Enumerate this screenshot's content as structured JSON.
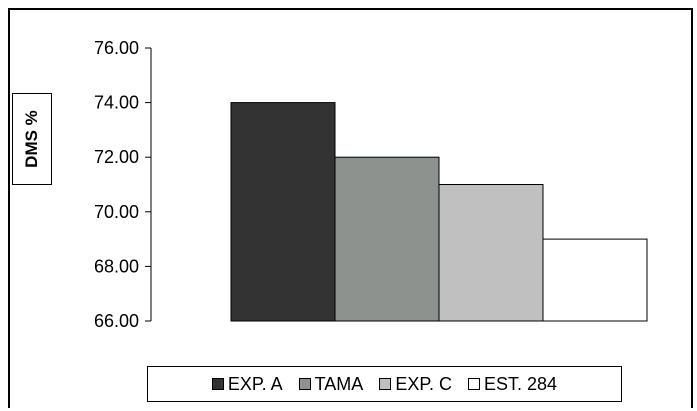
{
  "chart_data": {
    "type": "bar",
    "title": "",
    "xlabel": "",
    "ylabel": "DMS %",
    "ylim": [
      66,
      76
    ],
    "yticks": [
      "76.00",
      "74.00",
      "72.00",
      "70.00",
      "68.00",
      "66.00"
    ],
    "grid": false,
    "legend_position": "bottom",
    "categories": [
      "EXP. A",
      "TAMA",
      "EXP. C",
      "EST. 284"
    ],
    "values": [
      74.0,
      72.0,
      71.0,
      69.0
    ],
    "colors": [
      "#333333",
      "#8e928e",
      "#c0c0c0",
      "#ffffff"
    ]
  }
}
